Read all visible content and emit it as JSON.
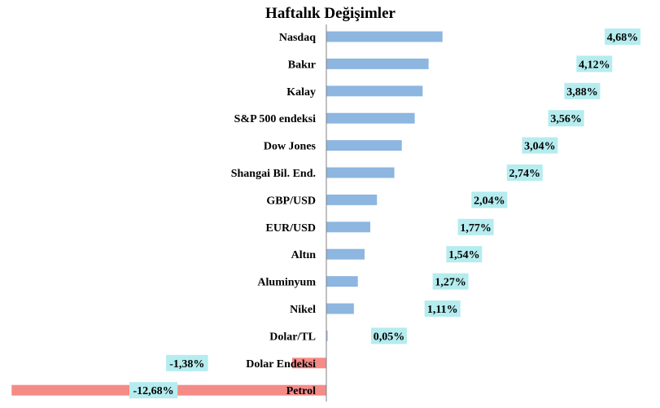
{
  "chart_data": {
    "type": "bar",
    "orientation": "horizontal",
    "title": "Haftalık Değişimler",
    "categories": [
      "Nasdaq",
      "Bakır",
      "Kalay",
      "S&P 500 endeksi",
      "Dow Jones",
      "Shangai Bil. End.",
      "GBP/USD",
      "EUR/USD",
      "Altın",
      "Aluminyum",
      "Nikel",
      "Dolar/TL",
      "Dolar Endeksi",
      "Petrol"
    ],
    "values": [
      4.68,
      4.12,
      3.88,
      3.56,
      3.04,
      2.74,
      2.04,
      1.77,
      1.54,
      1.27,
      1.11,
      0.05,
      -1.38,
      -12.68
    ],
    "value_labels": [
      "4,68%",
      "4,12%",
      "3,88%",
      "3,56%",
      "3,04%",
      "2,74%",
      "2,04%",
      "1,77%",
      "1,54%",
      "1,27%",
      "1,11%",
      "0,05%",
      "-1,38%",
      "-12,68%"
    ],
    "unit": "%",
    "grid": false,
    "legend": "none",
    "colors": {
      "positive": "#8db6e0",
      "negative": "#f58b87",
      "label_background": "#b5ecef",
      "axis": "#808080"
    }
  }
}
